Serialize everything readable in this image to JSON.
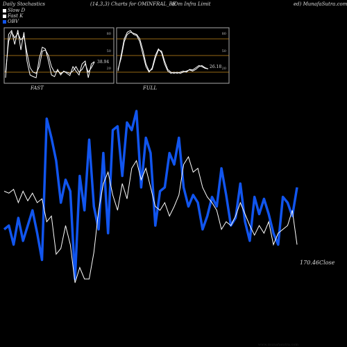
{
  "header": {
    "left": "Daily Stochastics",
    "mid1": "(14,3,3) Charts for OMINFRAL_BE",
    "mid2": "(Om Infra Limit",
    "right": "ed) MunafaSutra.com"
  },
  "legend": [
    {
      "label": "Slow D",
      "color": "#ffffff"
    },
    {
      "label": "Fast K",
      "color": "#ffffff"
    },
    {
      "label": "OBV",
      "color": "#1155ee"
    }
  ],
  "footer": "www.munafasutra.com",
  "colors": {
    "background": "#000000",
    "obv": "#1155ee",
    "close": "#ffffff",
    "band": "#c98a1c"
  },
  "chart_data": [
    {
      "type": "line",
      "title": "FAST",
      "ylim": [
        0,
        100
      ],
      "bands": [
        80,
        50,
        20
      ],
      "band_labels": [
        "80",
        "50",
        "20"
      ],
      "last_value_label": "38.94",
      "series": [
        {
          "values": [
            20,
            75,
            92,
            82,
            90,
            78,
            85,
            55,
            28,
            20,
            18,
            30,
            58,
            60,
            50,
            30,
            20,
            22,
            18,
            21,
            20,
            18,
            22,
            30,
            20,
            25,
            35,
            20,
            28,
            38
          ]
        },
        {
          "values": [
            10,
            88,
            95,
            70,
            96,
            60,
            92,
            40,
            15,
            12,
            10,
            45,
            65,
            62,
            40,
            15,
            12,
            25,
            15,
            22,
            18,
            14,
            30,
            22,
            15,
            35,
            40,
            10,
            35,
            39
          ]
        }
      ]
    },
    {
      "type": "line",
      "title": "FULL",
      "ylim": [
        0,
        100
      ],
      "bands": [
        80,
        50,
        20
      ],
      "band_labels": [
        "80",
        "50",
        "20"
      ],
      "last_value_label": "26.18",
      "series": [
        {
          "values": [
            25,
            45,
            75,
            88,
            92,
            90,
            88,
            80,
            60,
            35,
            22,
            25,
            45,
            60,
            58,
            40,
            25,
            20,
            18,
            20,
            18,
            20,
            22,
            24,
            22,
            25,
            30,
            32,
            28,
            26
          ]
        },
        {
          "values": [
            22,
            50,
            80,
            92,
            95,
            88,
            86,
            75,
            52,
            30,
            20,
            28,
            50,
            62,
            55,
            35,
            22,
            18,
            20,
            18,
            20,
            22,
            20,
            25,
            24,
            28,
            32,
            30,
            27,
            26
          ]
        }
      ]
    },
    {
      "type": "line",
      "last_value_label": "170.46",
      "last_value_suffix": "Close",
      "series": [
        {
          "name": "OBV",
          "values": [
            38,
            40,
            30,
            44,
            32,
            40,
            48,
            36,
            22,
            96,
            86,
            74,
            52,
            64,
            58,
            12,
            66,
            48,
            85,
            50,
            38,
            78,
            36,
            90,
            92,
            66,
            94,
            90,
            100,
            60,
            86,
            78,
            40,
            58,
            60,
            78,
            72,
            86,
            60,
            50,
            56,
            52,
            38,
            45,
            55,
            50,
            70,
            56,
            40,
            44,
            62,
            42,
            32,
            55,
            46,
            54,
            46,
            36,
            30,
            55,
            52,
            45,
            60
          ]
        },
        {
          "name": "Close",
          "values": [
            58,
            57,
            59,
            52,
            58,
            53,
            57,
            52,
            54,
            42,
            45,
            25,
            28,
            40,
            30,
            10,
            18,
            12,
            12,
            26,
            48,
            62,
            68,
            56,
            48,
            62,
            54,
            70,
            74,
            64,
            70,
            60,
            50,
            48,
            52,
            45,
            50,
            56,
            72,
            76,
            68,
            70,
            60,
            55,
            52,
            48,
            38,
            42,
            40,
            45,
            52,
            46,
            40,
            35,
            40,
            36,
            42,
            30,
            36,
            38,
            40,
            48,
            30
          ]
        }
      ]
    }
  ]
}
